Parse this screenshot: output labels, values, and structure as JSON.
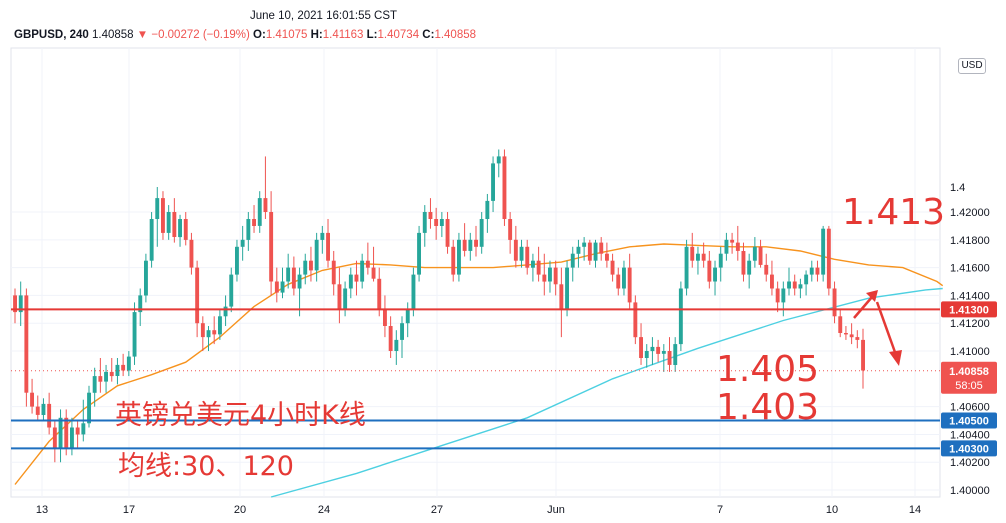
{
  "header": {
    "datetime": "June 10, 2021 16:01:55 CST",
    "symbol": "GBPUSD",
    "interval": "240",
    "last": "1.40858",
    "change": "−0.00272 (−0.19%)",
    "open_label": "O:",
    "open": "1.41075",
    "high_label": "H:",
    "high": "1.41163",
    "low_label": "L:",
    "low": "1.40734",
    "close_label": "C:",
    "close": "1.40858"
  },
  "currency_badge": "USD",
  "annotations": {
    "level_top": "1.413",
    "level_mid": "1.405",
    "level_low": "1.403",
    "title": "英镑兑美元4小时K线",
    "ma_note": "均线:30、120"
  },
  "colors": {
    "up": "#26a69a",
    "down": "#ef5350",
    "ma30": "#f7931e",
    "ma120": "#4dd0e1",
    "resistance_line": "#e53935",
    "support_line": "#1e6fbf",
    "annotation_text": "#e53935"
  },
  "chart_data": {
    "type": "candlestick",
    "symbol": "GBPUSD",
    "timeframe": "240",
    "y_range": [
      1.3995,
      1.4318
    ],
    "y_ticks": [
      1.4,
      1.402,
      1.404,
      1.406,
      1.408,
      1.41,
      1.412,
      1.414,
      1.416,
      1.418,
      1.42
    ],
    "y_tick_labels": [
      "1.40000",
      "1.40200",
      "1.40400",
      "1.40600",
      "1.41000",
      "1.41200",
      "1.41400",
      "1.41600",
      "1.41800",
      "1.42000"
    ],
    "y_tick_values": [
      1.4,
      1.402,
      1.404,
      1.406,
      1.41,
      1.412,
      1.414,
      1.416,
      1.418,
      1.42
    ],
    "top_partial_tick": "1.4",
    "x_labels": [
      "13",
      "17",
      "20",
      "24",
      "27",
      "Jun",
      "7",
      "10",
      "14"
    ],
    "horizontal_levels": [
      {
        "value": 1.413,
        "label": "1.41300",
        "color": "#e53935"
      },
      {
        "value": 1.405,
        "label": "1.40500",
        "color": "#1e6fbf"
      },
      {
        "value": 1.403,
        "label": "1.40300",
        "color": "#1e6fbf"
      }
    ],
    "last_price": {
      "value": 1.40858,
      "label": "1.40858",
      "countdown": "58:05"
    },
    "moving_averages": [
      {
        "period": 30,
        "color": "#f7931e",
        "points": [
          [
            0,
            1.4004
          ],
          [
            6,
            1.4035
          ],
          [
            12,
            1.4058
          ],
          [
            18,
            1.4075
          ],
          [
            24,
            1.4083
          ],
          [
            30,
            1.4092
          ],
          [
            36,
            1.411
          ],
          [
            42,
            1.4132
          ],
          [
            48,
            1.4148
          ],
          [
            54,
            1.4158
          ],
          [
            60,
            1.4163
          ],
          [
            66,
            1.4162
          ],
          [
            72,
            1.416
          ],
          [
            78,
            1.416
          ],
          [
            84,
            1.416
          ],
          [
            90,
            1.4162
          ],
          [
            96,
            1.4164
          ],
          [
            102,
            1.417
          ],
          [
            108,
            1.4175
          ],
          [
            114,
            1.4177
          ],
          [
            120,
            1.4176
          ],
          [
            126,
            1.4175
          ],
          [
            132,
            1.4175
          ],
          [
            138,
            1.4172
          ],
          [
            144,
            1.4166
          ],
          [
            150,
            1.4162
          ],
          [
            156,
            1.416
          ],
          [
            162,
            1.415
          ],
          [
            163,
            1.4147
          ]
        ]
      },
      {
        "period": 120,
        "color": "#4dd0e1",
        "points": [
          [
            45,
            1.3995
          ],
          [
            60,
            1.4012
          ],
          [
            75,
            1.4032
          ],
          [
            90,
            1.4052
          ],
          [
            105,
            1.408
          ],
          [
            120,
            1.4102
          ],
          [
            135,
            1.4122
          ],
          [
            150,
            1.4138
          ],
          [
            160,
            1.4144
          ],
          [
            163,
            1.4145
          ]
        ]
      }
    ],
    "candles": [
      [
        1.414,
        1.4145,
        1.412,
        1.4128
      ],
      [
        1.4128,
        1.415,
        1.4118,
        1.414
      ],
      [
        1.414,
        1.4145,
        1.406,
        1.407
      ],
      [
        1.407,
        1.408,
        1.4055,
        1.406
      ],
      [
        1.406,
        1.4068,
        1.405,
        1.4054
      ],
      [
        1.4054,
        1.4066,
        1.405,
        1.4062
      ],
      [
        1.4062,
        1.407,
        1.404,
        1.4045
      ],
      [
        1.4045,
        1.405,
        1.402,
        1.403
      ],
      [
        1.403,
        1.4058,
        1.402,
        1.4052
      ],
      [
        1.4052,
        1.4058,
        1.4025,
        1.403
      ],
      [
        1.403,
        1.4052,
        1.4025,
        1.4045
      ],
      [
        1.4045,
        1.405,
        1.403,
        1.404
      ],
      [
        1.404,
        1.4065,
        1.4035,
        1.4048
      ],
      [
        1.4048,
        1.4075,
        1.4045,
        1.407
      ],
      [
        1.407,
        1.4088,
        1.406,
        1.4082
      ],
      [
        1.4082,
        1.4095,
        1.407,
        1.4078
      ],
      [
        1.4078,
        1.409,
        1.407,
        1.4085
      ],
      [
        1.4085,
        1.4095,
        1.4078,
        1.4082
      ],
      [
        1.4082,
        1.4095,
        1.4076,
        1.409
      ],
      [
        1.409,
        1.4098,
        1.4082,
        1.4086
      ],
      [
        1.4086,
        1.41,
        1.4082,
        1.4096
      ],
      [
        1.4096,
        1.4135,
        1.409,
        1.4128
      ],
      [
        1.4128,
        1.4145,
        1.4118,
        1.414
      ],
      [
        1.414,
        1.417,
        1.4135,
        1.4165
      ],
      [
        1.4165,
        1.42,
        1.416,
        1.4195
      ],
      [
        1.4195,
        1.4218,
        1.4175,
        1.421
      ],
      [
        1.421,
        1.4215,
        1.418,
        1.4185
      ],
      [
        1.4185,
        1.4205,
        1.418,
        1.42
      ],
      [
        1.42,
        1.421,
        1.4178,
        1.4182
      ],
      [
        1.4182,
        1.4198,
        1.4175,
        1.4195
      ],
      [
        1.4195,
        1.42,
        1.4176,
        1.418
      ],
      [
        1.418,
        1.4185,
        1.4155,
        1.416
      ],
      [
        1.416,
        1.4165,
        1.411,
        1.412
      ],
      [
        1.412,
        1.4125,
        1.41,
        1.411
      ],
      [
        1.411,
        1.4118,
        1.41,
        1.4115
      ],
      [
        1.4115,
        1.4125,
        1.4105,
        1.4112
      ],
      [
        1.4112,
        1.413,
        1.4108,
        1.4125
      ],
      [
        1.4125,
        1.414,
        1.4118,
        1.4132
      ],
      [
        1.4132,
        1.416,
        1.4128,
        1.4155
      ],
      [
        1.4155,
        1.418,
        1.415,
        1.4175
      ],
      [
        1.4175,
        1.419,
        1.4165,
        1.418
      ],
      [
        1.418,
        1.42,
        1.4172,
        1.4195
      ],
      [
        1.4195,
        1.4205,
        1.4185,
        1.419
      ],
      [
        1.419,
        1.4215,
        1.4185,
        1.421
      ],
      [
        1.421,
        1.424,
        1.4195,
        1.42
      ],
      [
        1.42,
        1.4215,
        1.414,
        1.415
      ],
      [
        1.415,
        1.416,
        1.4135,
        1.4142
      ],
      [
        1.4142,
        1.416,
        1.4138,
        1.415
      ],
      [
        1.415,
        1.417,
        1.4145,
        1.416
      ],
      [
        1.416,
        1.4168,
        1.414,
        1.4145
      ],
      [
        1.4145,
        1.416,
        1.4125,
        1.4155
      ],
      [
        1.4155,
        1.417,
        1.4148,
        1.4165
      ],
      [
        1.4165,
        1.4175,
        1.415,
        1.4158
      ],
      [
        1.4158,
        1.4185,
        1.415,
        1.418
      ],
      [
        1.418,
        1.419,
        1.417,
        1.4185
      ],
      [
        1.4185,
        1.4195,
        1.416,
        1.4165
      ],
      [
        1.4165,
        1.4172,
        1.414,
        1.4148
      ],
      [
        1.4148,
        1.416,
        1.412,
        1.413
      ],
      [
        1.413,
        1.415,
        1.4125,
        1.4145
      ],
      [
        1.4145,
        1.416,
        1.4138,
        1.4155
      ],
      [
        1.4155,
        1.4165,
        1.414,
        1.415
      ],
      [
        1.415,
        1.417,
        1.4145,
        1.4165
      ],
      [
        1.4165,
        1.4178,
        1.4155,
        1.416
      ],
      [
        1.416,
        1.4175,
        1.415,
        1.4152
      ],
      [
        1.4152,
        1.416,
        1.4125,
        1.413
      ],
      [
        1.413,
        1.414,
        1.411,
        1.4118
      ],
      [
        1.4118,
        1.4125,
        1.4095,
        1.41
      ],
      [
        1.41,
        1.4115,
        1.409,
        1.4108
      ],
      [
        1.4108,
        1.4125,
        1.4095,
        1.412
      ],
      [
        1.412,
        1.4135,
        1.411,
        1.413
      ],
      [
        1.413,
        1.416,
        1.4125,
        1.4155
      ],
      [
        1.4155,
        1.419,
        1.415,
        1.4185
      ],
      [
        1.4185,
        1.4205,
        1.4175,
        1.42
      ],
      [
        1.42,
        1.421,
        1.4188,
        1.4195
      ],
      [
        1.4195,
        1.4203,
        1.418,
        1.419
      ],
      [
        1.419,
        1.42,
        1.4182,
        1.4195
      ],
      [
        1.4195,
        1.42,
        1.417,
        1.4175
      ],
      [
        1.4175,
        1.418,
        1.415,
        1.4155
      ],
      [
        1.4155,
        1.4185,
        1.415,
        1.418
      ],
      [
        1.418,
        1.4192,
        1.4168,
        1.4172
      ],
      [
        1.4172,
        1.4185,
        1.4165,
        1.418
      ],
      [
        1.418,
        1.419,
        1.4168,
        1.4175
      ],
      [
        1.4175,
        1.42,
        1.417,
        1.4195
      ],
      [
        1.4195,
        1.4213,
        1.4185,
        1.4208
      ],
      [
        1.4208,
        1.424,
        1.42,
        1.4235
      ],
      [
        1.4235,
        1.4245,
        1.4225,
        1.424
      ],
      [
        1.424,
        1.4245,
        1.419,
        1.4195
      ],
      [
        1.4195,
        1.42,
        1.417,
        1.418
      ],
      [
        1.418,
        1.419,
        1.416,
        1.4165
      ],
      [
        1.4165,
        1.418,
        1.416,
        1.4175
      ],
      [
        1.4175,
        1.418,
        1.4155,
        1.416
      ],
      [
        1.416,
        1.417,
        1.415,
        1.4165
      ],
      [
        1.4165,
        1.4175,
        1.415,
        1.4155
      ],
      [
        1.4155,
        1.417,
        1.414,
        1.415
      ],
      [
        1.415,
        1.4165,
        1.4142,
        1.416
      ],
      [
        1.416,
        1.4165,
        1.414,
        1.4148
      ],
      [
        1.4148,
        1.416,
        1.411,
        1.413
      ],
      [
        1.413,
        1.4165,
        1.4125,
        1.416
      ],
      [
        1.416,
        1.4175,
        1.415,
        1.417
      ],
      [
        1.417,
        1.418,
        1.416,
        1.4175
      ],
      [
        1.4175,
        1.4182,
        1.4165,
        1.4178
      ],
      [
        1.4178,
        1.418,
        1.4162,
        1.4165
      ],
      [
        1.4165,
        1.418,
        1.416,
        1.4178
      ],
      [
        1.4178,
        1.4182,
        1.4165,
        1.417
      ],
      [
        1.417,
        1.4178,
        1.416,
        1.4165
      ],
      [
        1.4165,
        1.417,
        1.415,
        1.4155
      ],
      [
        1.4155,
        1.416,
        1.414,
        1.4145
      ],
      [
        1.4145,
        1.4165,
        1.414,
        1.416
      ],
      [
        1.416,
        1.417,
        1.413,
        1.4135
      ],
      [
        1.4135,
        1.414,
        1.4105,
        1.411
      ],
      [
        1.411,
        1.412,
        1.409,
        1.4095
      ],
      [
        1.4095,
        1.4105,
        1.4088,
        1.41
      ],
      [
        1.41,
        1.411,
        1.409,
        1.4103
      ],
      [
        1.4103,
        1.4108,
        1.4092,
        1.4098
      ],
      [
        1.4098,
        1.4105,
        1.4085,
        1.41
      ],
      [
        1.41,
        1.411,
        1.4085,
        1.409
      ],
      [
        1.409,
        1.411,
        1.4085,
        1.4105
      ],
      [
        1.4105,
        1.415,
        1.41,
        1.4145
      ],
      [
        1.4145,
        1.418,
        1.414,
        1.4175
      ],
      [
        1.4175,
        1.4185,
        1.416,
        1.4165
      ],
      [
        1.4165,
        1.4175,
        1.4155,
        1.417
      ],
      [
        1.417,
        1.4178,
        1.416,
        1.4165
      ],
      [
        1.4165,
        1.4172,
        1.4145,
        1.415
      ],
      [
        1.415,
        1.4165,
        1.414,
        1.416
      ],
      [
        1.416,
        1.4175,
        1.415,
        1.417
      ],
      [
        1.417,
        1.4185,
        1.4165,
        1.418
      ],
      [
        1.418,
        1.4185,
        1.417,
        1.4178
      ],
      [
        1.4178,
        1.419,
        1.4165,
        1.4172
      ],
      [
        1.4172,
        1.4178,
        1.415,
        1.4155
      ],
      [
        1.4155,
        1.417,
        1.4145,
        1.4165
      ],
      [
        1.4165,
        1.4182,
        1.416,
        1.4175
      ],
      [
        1.4175,
        1.418,
        1.416,
        1.4162
      ],
      [
        1.4162,
        1.417,
        1.415,
        1.4155
      ],
      [
        1.4155,
        1.4165,
        1.414,
        1.4145
      ],
      [
        1.4145,
        1.415,
        1.4128,
        1.4135
      ],
      [
        1.4135,
        1.415,
        1.4125,
        1.4145
      ],
      [
        1.4145,
        1.416,
        1.414,
        1.415
      ],
      [
        1.415,
        1.4155,
        1.414,
        1.4145
      ],
      [
        1.4145,
        1.4152,
        1.4138,
        1.4148
      ],
      [
        1.4148,
        1.4158,
        1.414,
        1.4155
      ],
      [
        1.4155,
        1.4165,
        1.415,
        1.416
      ],
      [
        1.416,
        1.4165,
        1.415,
        1.4155
      ],
      [
        1.4155,
        1.419,
        1.415,
        1.4188
      ],
      [
        1.4188,
        1.419,
        1.414,
        1.4145
      ],
      [
        1.4145,
        1.415,
        1.412,
        1.4125
      ],
      [
        1.4125,
        1.413,
        1.411,
        1.4113
      ],
      [
        1.4113,
        1.4118,
        1.4108,
        1.4112
      ],
      [
        1.4112,
        1.412,
        1.4105,
        1.411
      ],
      [
        1.411,
        1.4115,
        1.4102,
        1.4108
      ],
      [
        1.4108,
        1.4116,
        1.4073,
        1.4086
      ]
    ]
  }
}
